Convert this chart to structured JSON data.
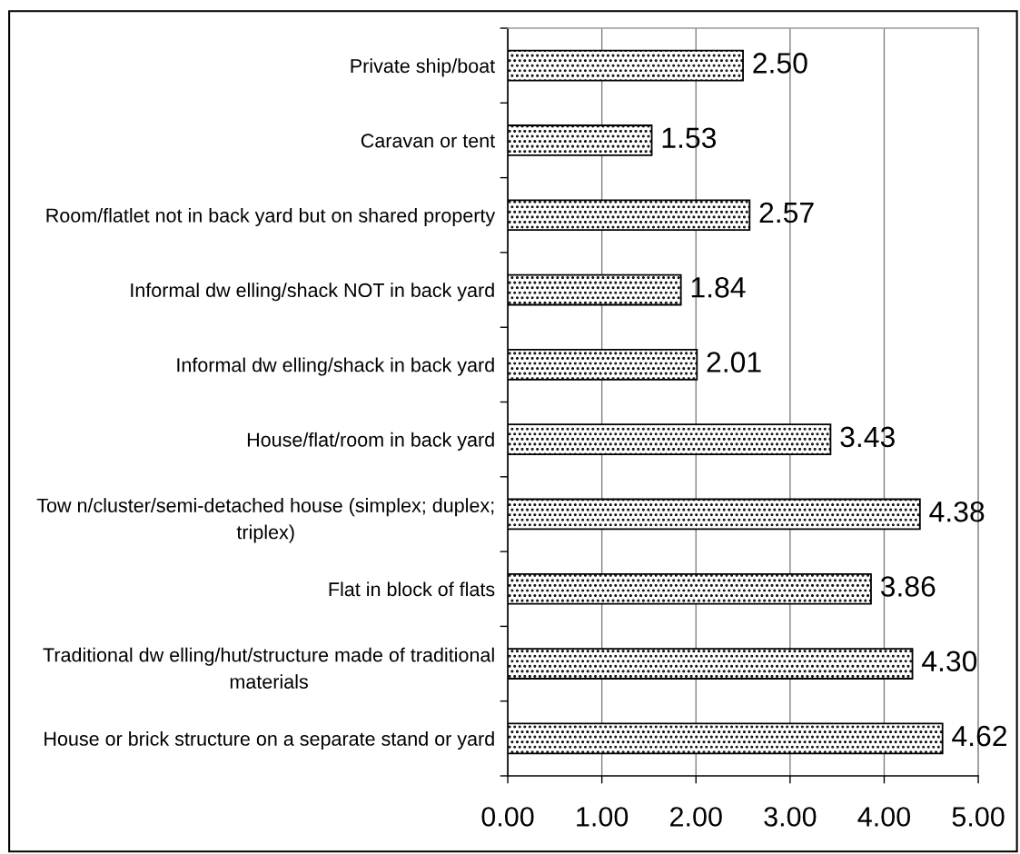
{
  "chart_data": {
    "type": "bar",
    "orientation": "horizontal",
    "categories": [
      "Private ship/boat",
      "Caravan or tent",
      "Room/flatlet not in back yard but on shared property",
      "Informal dw elling/shack NOT in back yard",
      "Informal dw elling/shack in back yard",
      "House/flat/room in back yard",
      "Tow n/cluster/semi-detached house (simplex; duplex;\ntriplex)",
      "Flat in block of flats",
      "Traditional dw elling/hut/structure made of traditional\nmaterials",
      "House or brick structure on a separate stand or yard"
    ],
    "values": [
      2.5,
      1.53,
      2.57,
      1.84,
      2.01,
      3.43,
      4.38,
      3.86,
      4.3,
      4.62
    ],
    "value_labels": [
      "2.50",
      "1.53",
      "2.57",
      "1.84",
      "2.01",
      "3.43",
      "4.38",
      "3.86",
      "4.30",
      "4.62"
    ],
    "color": "#000000",
    "xlim": [
      0,
      5
    ],
    "xticks": [
      {
        "value": 0,
        "label": "0.00"
      },
      {
        "value": 1,
        "label": "1.00"
      },
      {
        "value": 2,
        "label": "2.00"
      },
      {
        "value": 3,
        "label": "3.00"
      },
      {
        "value": 4,
        "label": "4.00"
      },
      {
        "value": 5,
        "label": "5.00"
      }
    ],
    "grid": "x"
  }
}
